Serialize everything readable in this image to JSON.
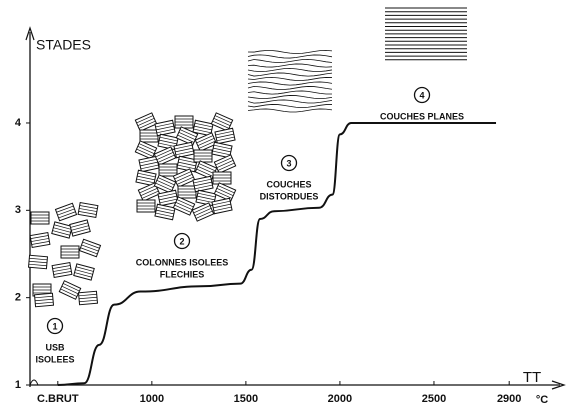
{
  "chart_data": {
    "type": "line",
    "y_label": "STADES",
    "x_label": "TT",
    "x_unit": "°C",
    "xlim": [
      400,
      3000
    ],
    "ylim": [
      1,
      4.95
    ],
    "xticks": [
      {
        "value": 500,
        "label": "C.BRUT"
      },
      1000,
      1500,
      2000,
      2500,
      2900
    ],
    "yticks": [
      1,
      2,
      3,
      4
    ],
    "series": [
      {
        "color": "#111111",
        "x": [
          500,
          640,
          720,
          800,
          940,
          1260,
          1470,
          1530,
          1575,
          1650,
          1890,
          1960,
          2000,
          2060,
          2830
        ],
        "values": [
          1,
          1.02,
          1.46,
          1.92,
          2.07,
          2.13,
          2.16,
          2.32,
          2.9,
          2.99,
          3.03,
          3.18,
          3.87,
          4,
          4
        ]
      }
    ],
    "annotations": [
      {
        "number": "1",
        "lines": [
          "USB",
          "ISOLEES"
        ]
      },
      {
        "number": "2",
        "lines": [
          "COLONNES  ISOLEES",
          "FLECHIES"
        ]
      },
      {
        "number": "3",
        "lines": [
          "COUCHES",
          "DISTORDUES"
        ]
      },
      {
        "number": "4",
        "lines": [
          "COUCHES  PLANES"
        ]
      }
    ]
  }
}
